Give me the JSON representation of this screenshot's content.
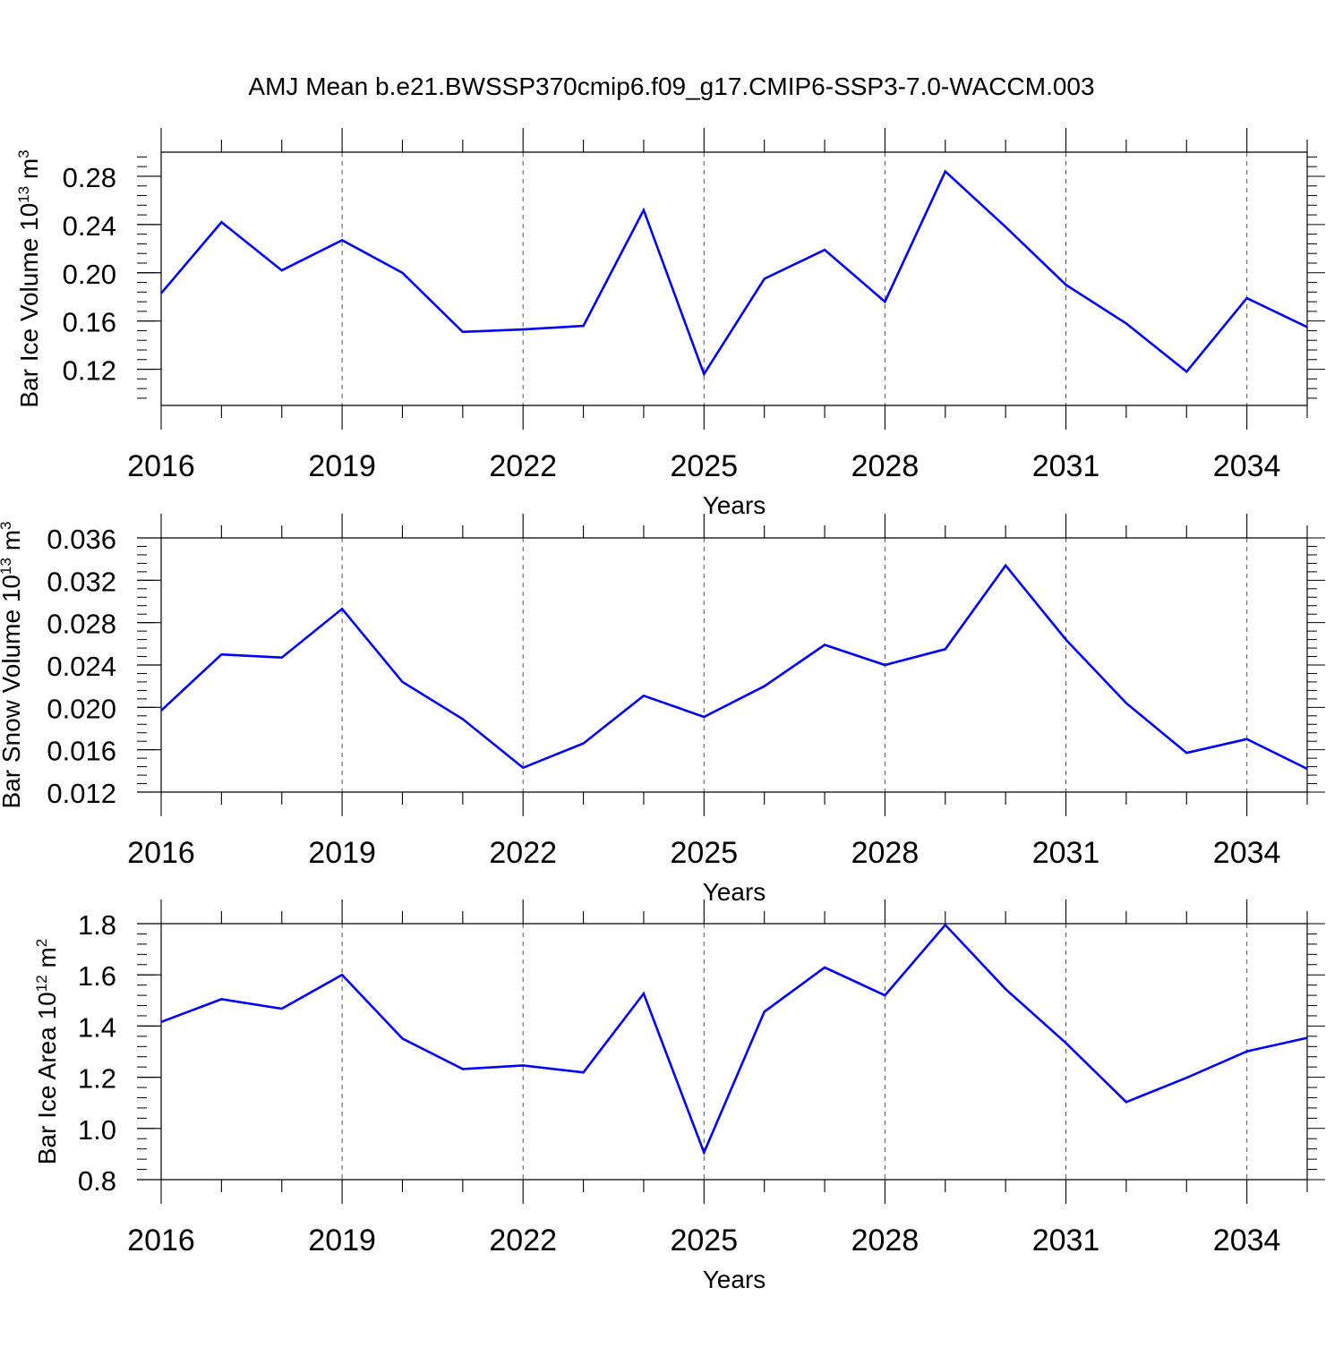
{
  "title": "AMJ Mean b.e21.BWSSP370cmip6.f09_g17.CMIP6-SSP3-7.0-WACCM.003",
  "line_color": "#0000ff",
  "chart_data": [
    {
      "type": "line",
      "ylabel": {
        "main": "Bar Ice Volume 10",
        "sup": "13",
        "unit": " m",
        "unit_sup": "3"
      },
      "xlabel": "Years",
      "xlim": [
        2016,
        2035
      ],
      "xticks": [
        "2016",
        "2019",
        "2022",
        "2025",
        "2028",
        "2031",
        "2034"
      ],
      "ylim": [
        0.09,
        0.3
      ],
      "yticks": [
        "0.12",
        "0.16",
        "0.20",
        "0.24",
        "0.28"
      ],
      "ytick_values": [
        0.12,
        0.16,
        0.2,
        0.24,
        0.28
      ],
      "x": [
        2016,
        2017,
        2018,
        2019,
        2020,
        2021,
        2022,
        2023,
        2024,
        2025,
        2026,
        2027,
        2028,
        2029,
        2030,
        2031,
        2032,
        2033,
        2034,
        2035
      ],
      "values": [
        0.183,
        0.242,
        0.202,
        0.227,
        0.2,
        0.151,
        0.153,
        0.156,
        0.252,
        0.116,
        0.195,
        0.219,
        0.176,
        0.284,
        0.238,
        0.19,
        0.158,
        0.118,
        0.179,
        0.155
      ]
    },
    {
      "type": "line",
      "ylabel": {
        "main": "Bar Snow Volume 10",
        "sup": "13",
        "unit": " m",
        "unit_sup": "3"
      },
      "xlabel": "Years",
      "xlim": [
        2016,
        2035
      ],
      "xticks": [
        "2016",
        "2019",
        "2022",
        "2025",
        "2028",
        "2031",
        "2034"
      ],
      "ylim": [
        0.012,
        0.036
      ],
      "yticks": [
        "0.012",
        "0.016",
        "0.020",
        "0.024",
        "0.028",
        "0.032",
        "0.036"
      ],
      "ytick_values": [
        0.012,
        0.016,
        0.02,
        0.024,
        0.028,
        0.032,
        0.036
      ],
      "x": [
        2016,
        2017,
        2018,
        2019,
        2020,
        2021,
        2022,
        2023,
        2024,
        2025,
        2026,
        2027,
        2028,
        2029,
        2030,
        2031,
        2032,
        2033,
        2034,
        2035
      ],
      "values": [
        0.0197,
        0.025,
        0.0247,
        0.0293,
        0.0224,
        0.0189,
        0.0143,
        0.0166,
        0.0211,
        0.0191,
        0.022,
        0.0259,
        0.024,
        0.0255,
        0.0334,
        0.0264,
        0.0204,
        0.0157,
        0.017,
        0.0142
      ]
    },
    {
      "type": "line",
      "ylabel": {
        "main": "Bar Ice Area 10",
        "sup": "12",
        "unit": " m",
        "unit_sup": "2"
      },
      "xlabel": "Years",
      "xlim": [
        2016,
        2035
      ],
      "xticks": [
        "2016",
        "2019",
        "2022",
        "2025",
        "2028",
        "2031",
        "2034"
      ],
      "ylim": [
        0.8,
        1.8
      ],
      "yticks": [
        "0.8",
        "1.0",
        "1.2",
        "1.4",
        "1.6",
        "1.8"
      ],
      "ytick_values": [
        0.8,
        1.0,
        1.2,
        1.4,
        1.6,
        1.8
      ],
      "x": [
        2016,
        2017,
        2018,
        2019,
        2020,
        2021,
        2022,
        2023,
        2024,
        2025,
        2026,
        2027,
        2028,
        2029,
        2030,
        2031,
        2032,
        2033,
        2034,
        2035
      ],
      "values": [
        1.416,
        1.505,
        1.468,
        1.6,
        1.351,
        1.232,
        1.246,
        1.219,
        1.527,
        0.906,
        1.456,
        1.629,
        1.52,
        1.795,
        1.544,
        1.334,
        1.103,
        1.198,
        1.301,
        1.354
      ]
    }
  ]
}
